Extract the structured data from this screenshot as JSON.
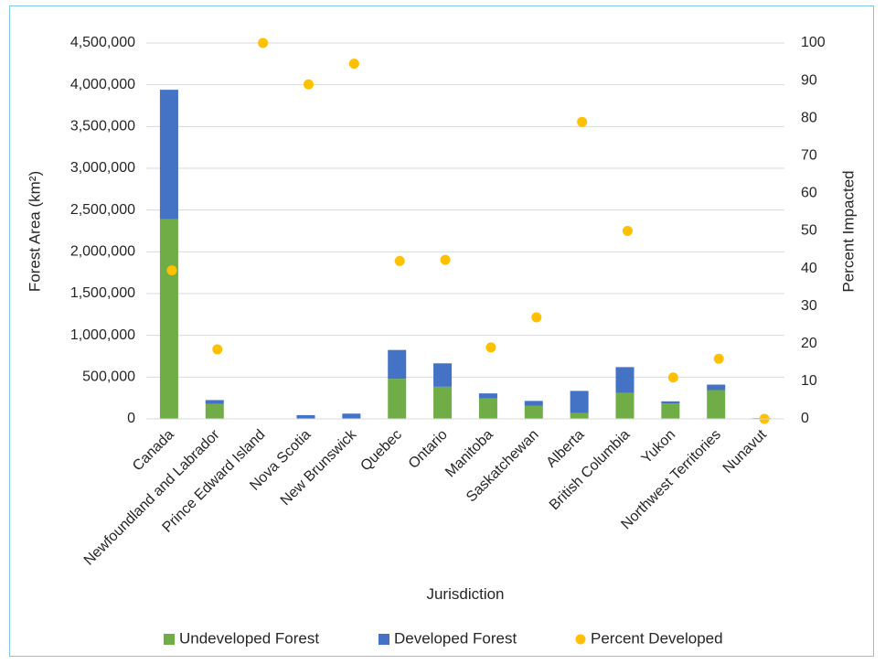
{
  "chart_data": {
    "type": "bar",
    "stacked": true,
    "xlabel": "Jurisdiction",
    "ylabel_left": "Forest Area (km²)",
    "ylabel_right": "Percent Impacted",
    "ylim_left": [
      0,
      4500000
    ],
    "ylim_right": [
      0,
      100
    ],
    "left_ticks": [
      "0",
      "500,000",
      "1,000,000",
      "1,500,000",
      "2,000,000",
      "2,500,000",
      "3,000,000",
      "3,500,000",
      "4,000,000",
      "4,500,000"
    ],
    "right_ticks": [
      "0",
      "10",
      "20",
      "30",
      "40",
      "50",
      "60",
      "70",
      "80",
      "90",
      "100"
    ],
    "categories": [
      "Canada",
      "Newfoundland and Labrador",
      "Prince Edward Island",
      "Nova Scotia",
      "New Brunswick",
      "Quebec",
      "Ontario",
      "Manitoba",
      "Saskatchewan",
      "Alberta",
      "British Columbia",
      "Yukon",
      "Northwest Territories",
      "Nunavut"
    ],
    "series": [
      {
        "name": "Undeveloped Forest",
        "type": "bar",
        "axis": "left",
        "color": "#70ad47",
        "values": [
          2390000,
          180000,
          0,
          5000,
          3000,
          480000,
          385000,
          245000,
          155000,
          70000,
          310000,
          185000,
          345000,
          10000
        ]
      },
      {
        "name": "Developed Forest",
        "type": "bar",
        "axis": "left",
        "color": "#4472c4",
        "values": [
          1550000,
          45000,
          3000,
          40000,
          60000,
          345000,
          280000,
          60000,
          60000,
          265000,
          310000,
          25000,
          65000,
          0
        ]
      },
      {
        "name": "Percent Developed",
        "type": "scatter",
        "axis": "right",
        "color": "#ffc000",
        "values": [
          39.5,
          18.5,
          100,
          89,
          94.5,
          42,
          42.3,
          19,
          27,
          79,
          50,
          11,
          16,
          0
        ]
      }
    ],
    "legend_position": "bottom",
    "grid": true
  }
}
